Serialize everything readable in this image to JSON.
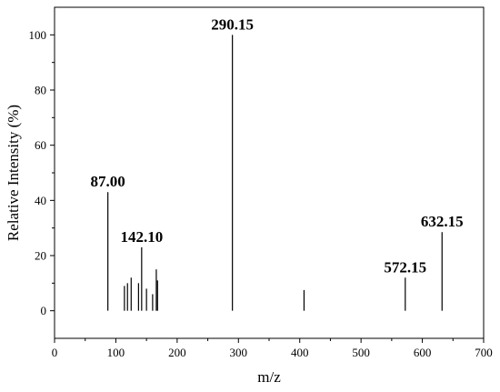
{
  "chart_data": {
    "type": "bar",
    "title": "",
    "xlabel": "m/z",
    "ylabel": "Relative Intensity (%)",
    "xlim": [
      0,
      700
    ],
    "ylim": [
      -10,
      110
    ],
    "xticks": [
      0,
      100,
      200,
      300,
      400,
      500,
      600,
      700
    ],
    "yticks": [
      0,
      20,
      40,
      60,
      80,
      100
    ],
    "grid": false,
    "series": [
      {
        "peaks": [
          {
            "mz": 87.0,
            "intensity": 43,
            "label": "87.00"
          },
          {
            "mz": 114,
            "intensity": 9
          },
          {
            "mz": 119,
            "intensity": 10
          },
          {
            "mz": 125,
            "intensity": 12
          },
          {
            "mz": 137,
            "intensity": 10
          },
          {
            "mz": 142.1,
            "intensity": 23,
            "label": "142.10"
          },
          {
            "mz": 150,
            "intensity": 8
          },
          {
            "mz": 160,
            "intensity": 6
          },
          {
            "mz": 166,
            "intensity": 15
          },
          {
            "mz": 168,
            "intensity": 11
          },
          {
            "mz": 290.15,
            "intensity": 100,
            "label": "290.15"
          },
          {
            "mz": 407,
            "intensity": 7.5
          },
          {
            "mz": 572.15,
            "intensity": 12,
            "label": "572.15"
          },
          {
            "mz": 632.15,
            "intensity": 28.5,
            "label": "632.15"
          }
        ]
      }
    ]
  }
}
